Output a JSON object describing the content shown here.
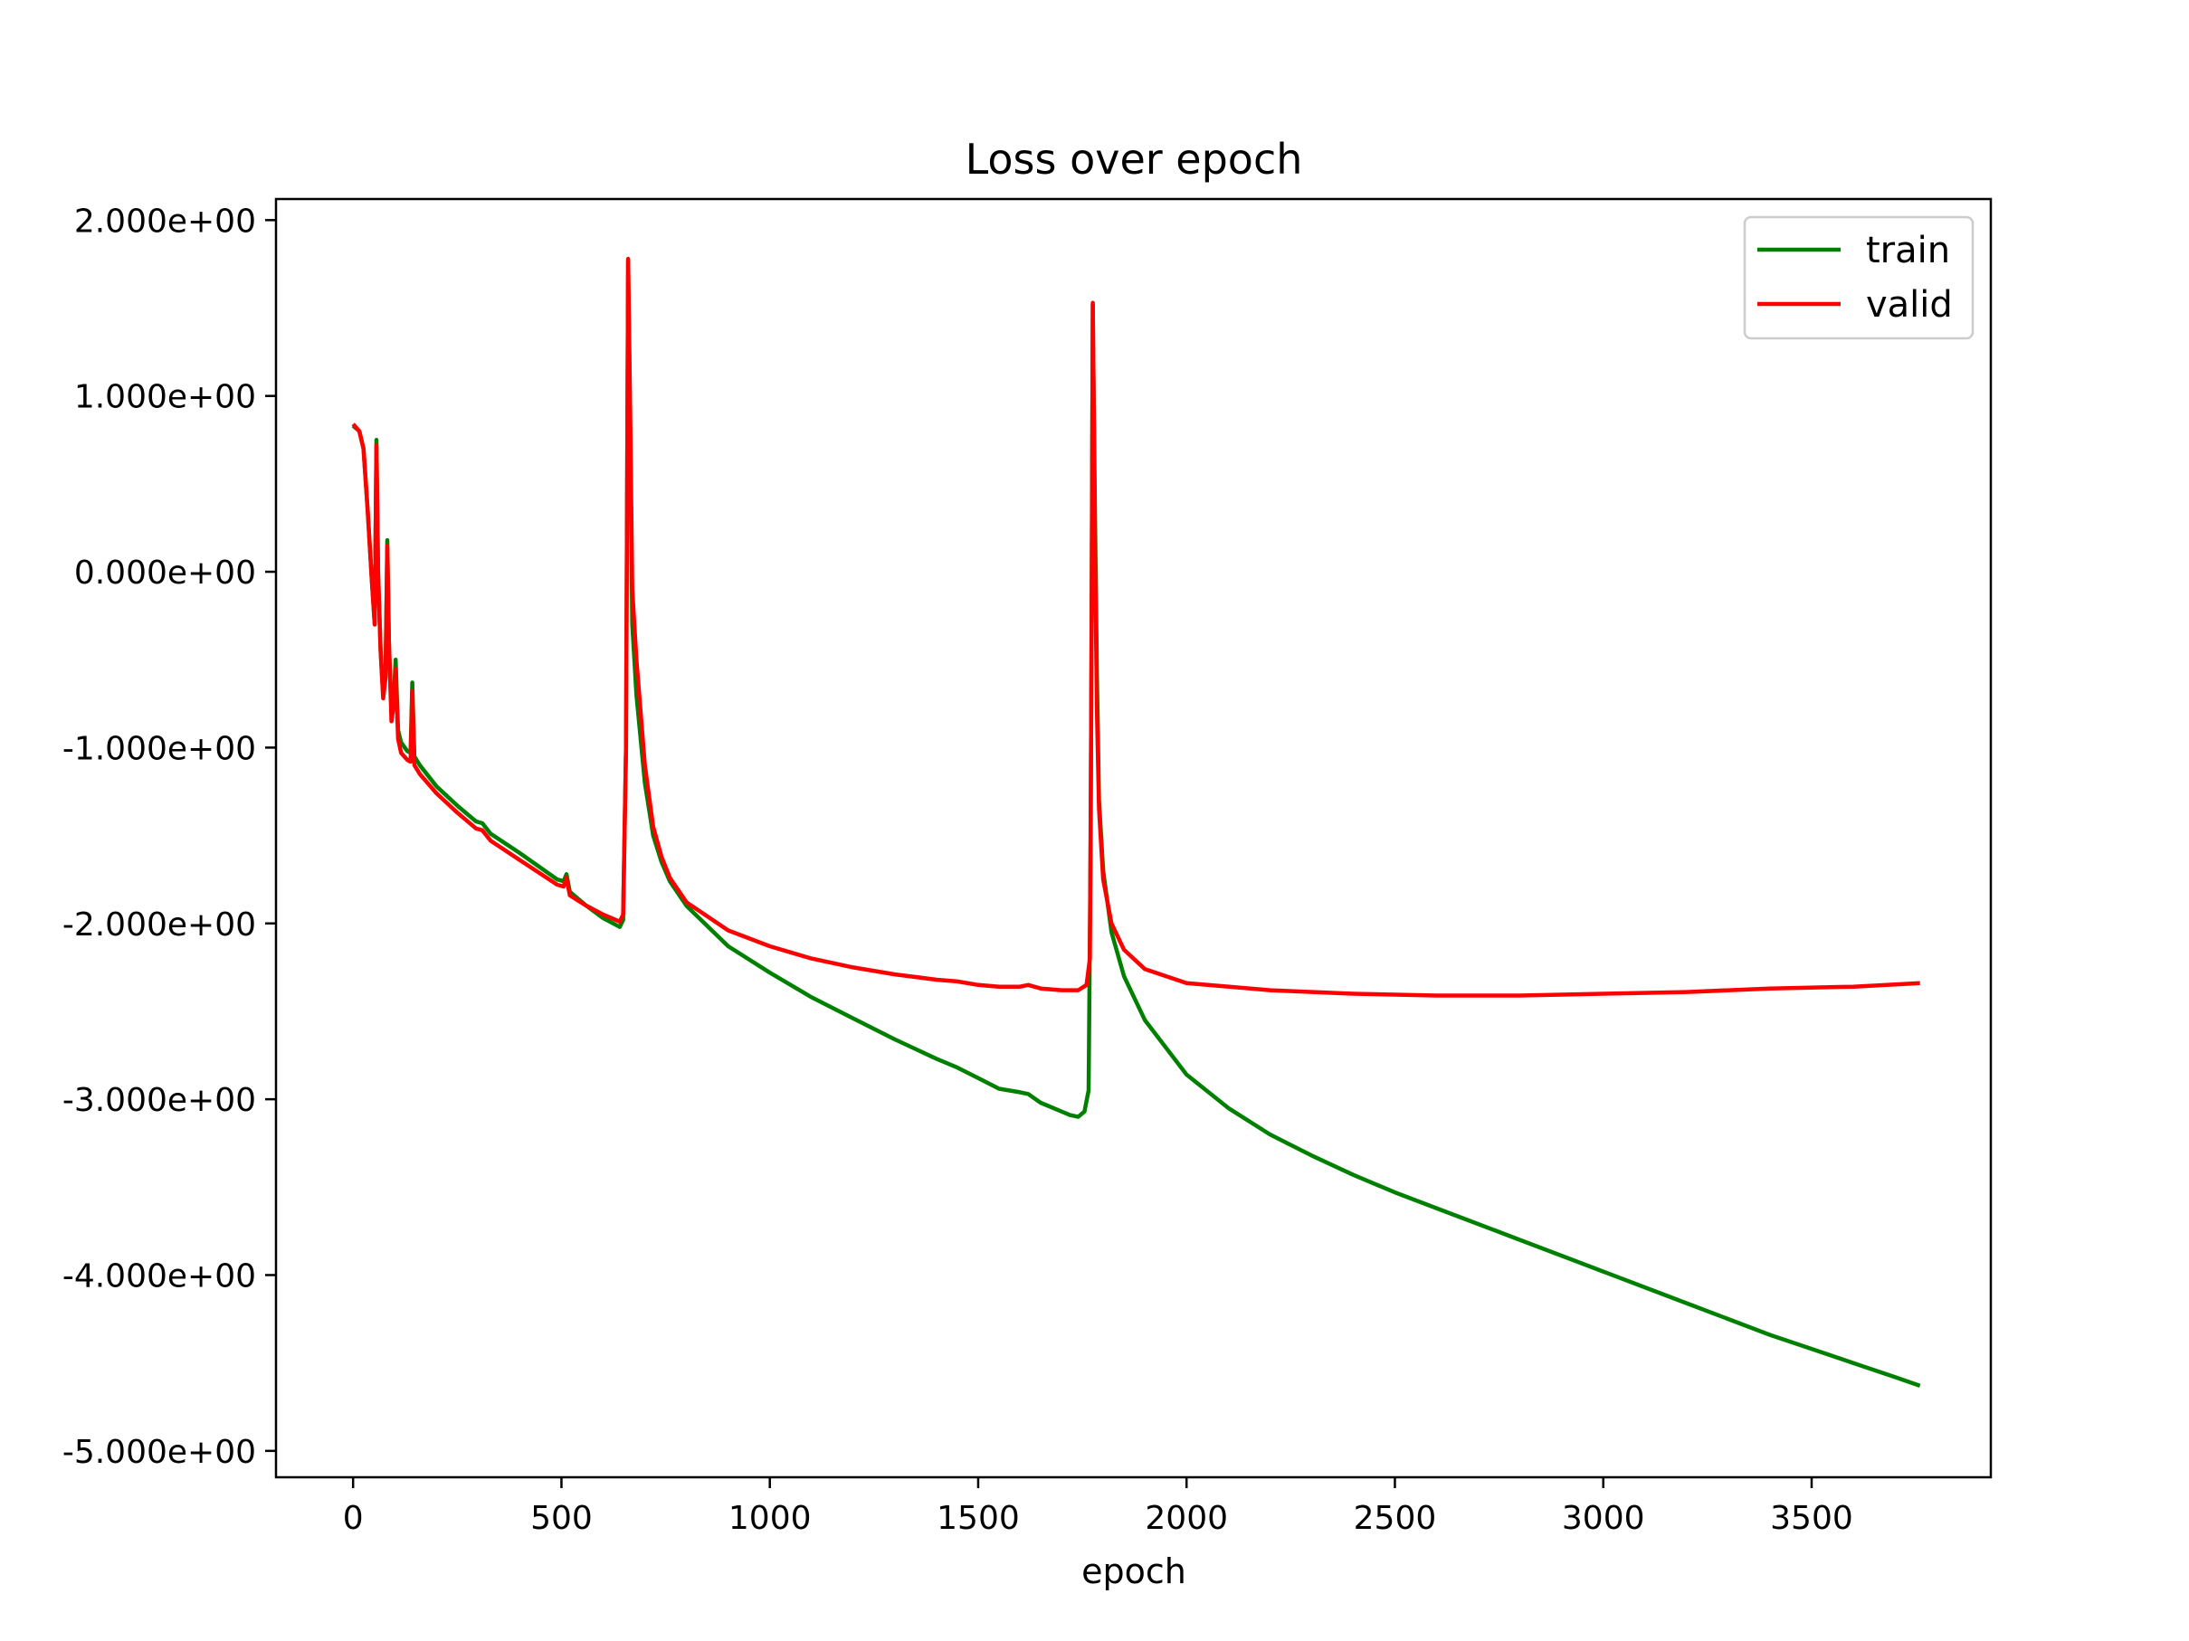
{
  "chart_data": {
    "type": "line",
    "title": "Loss over epoch",
    "xlabel": "epoch",
    "ylabel": "",
    "xlim": [
      -185,
      3930
    ],
    "ylim": [
      -5.15,
      2.12
    ],
    "xticks": [
      0,
      500,
      1000,
      1500,
      2000,
      2500,
      3000,
      3500
    ],
    "xtick_labels": [
      "0",
      "500",
      "1000",
      "1500",
      "2000",
      "2500",
      "3000",
      "3500"
    ],
    "yticks": [
      2,
      1,
      0,
      -1,
      -2,
      -3,
      -4,
      -5
    ],
    "ytick_labels": [
      "2.000e+00",
      "1.000e+00",
      "0.000e+00",
      "-1.000e+00",
      "-2.000e+00",
      "-3.000e+00",
      "-4.000e+00",
      "-5.000e+00"
    ],
    "grid": false,
    "legend_position": "top-right",
    "series": [
      {
        "name": "train",
        "color": "#008000",
        "points": [
          [
            0,
            0.83
          ],
          [
            15,
            0.8
          ],
          [
            25,
            0.7
          ],
          [
            35,
            0.35
          ],
          [
            45,
            -0.05
          ],
          [
            52,
            -0.3
          ],
          [
            56,
            0.75
          ],
          [
            60,
            0.0
          ],
          [
            66,
            -0.45
          ],
          [
            72,
            -0.7
          ],
          [
            78,
            -0.55
          ],
          [
            82,
            0.18
          ],
          [
            86,
            -0.4
          ],
          [
            92,
            -0.8
          ],
          [
            98,
            -0.7
          ],
          [
            102,
            -0.5
          ],
          [
            108,
            -0.9
          ],
          [
            115,
            -0.97
          ],
          [
            130,
            -1.02
          ],
          [
            138,
            -1.03
          ],
          [
            142,
            -0.63
          ],
          [
            147,
            -1.05
          ],
          [
            160,
            -1.1
          ],
          [
            200,
            -1.22
          ],
          [
            250,
            -1.33
          ],
          [
            295,
            -1.42
          ],
          [
            310,
            -1.43
          ],
          [
            330,
            -1.49
          ],
          [
            400,
            -1.6
          ],
          [
            490,
            -1.75
          ],
          [
            505,
            -1.76
          ],
          [
            512,
            -1.72
          ],
          [
            520,
            -1.82
          ],
          [
            560,
            -1.9
          ],
          [
            600,
            -1.97
          ],
          [
            640,
            -2.02
          ],
          [
            648,
            -1.98
          ],
          [
            655,
            -1.0
          ],
          [
            660,
            1.77
          ],
          [
            665,
            0.8
          ],
          [
            670,
            -0.3
          ],
          [
            680,
            -0.7
          ],
          [
            700,
            -1.2
          ],
          [
            720,
            -1.5
          ],
          [
            740,
            -1.65
          ],
          [
            760,
            -1.76
          ],
          [
            800,
            -1.9
          ],
          [
            900,
            -2.13
          ],
          [
            1000,
            -2.28
          ],
          [
            1100,
            -2.42
          ],
          [
            1200,
            -2.54
          ],
          [
            1300,
            -2.66
          ],
          [
            1400,
            -2.77
          ],
          [
            1450,
            -2.82
          ],
          [
            1500,
            -2.88
          ],
          [
            1550,
            -2.94
          ],
          [
            1600,
            -2.96
          ],
          [
            1620,
            -2.97
          ],
          [
            1650,
            -3.02
          ],
          [
            1700,
            -3.07
          ],
          [
            1720,
            -3.09
          ],
          [
            1740,
            -3.1
          ],
          [
            1755,
            -3.07
          ],
          [
            1765,
            -2.95
          ],
          [
            1770,
            -1.5
          ],
          [
            1775,
            1.52
          ],
          [
            1780,
            0.4
          ],
          [
            1785,
            -0.6
          ],
          [
            1790,
            -1.3
          ],
          [
            1800,
            -1.7
          ],
          [
            1820,
            -2.05
          ],
          [
            1850,
            -2.3
          ],
          [
            1900,
            -2.55
          ],
          [
            2000,
            -2.86
          ],
          [
            2100,
            -3.05
          ],
          [
            2200,
            -3.2
          ],
          [
            2300,
            -3.32
          ],
          [
            2400,
            -3.43
          ],
          [
            2500,
            -3.53
          ],
          [
            2600,
            -3.62
          ],
          [
            2700,
            -3.71
          ],
          [
            2800,
            -3.8
          ],
          [
            2900,
            -3.89
          ],
          [
            3000,
            -3.98
          ],
          [
            3100,
            -4.07
          ],
          [
            3200,
            -4.16
          ],
          [
            3300,
            -4.25
          ],
          [
            3400,
            -4.34
          ],
          [
            3500,
            -4.42
          ],
          [
            3600,
            -4.5
          ],
          [
            3700,
            -4.58
          ],
          [
            3760,
            -4.63
          ]
        ]
      },
      {
        "name": "valid",
        "color": "#ff0000",
        "points": [
          [
            0,
            0.84
          ],
          [
            15,
            0.8
          ],
          [
            25,
            0.7
          ],
          [
            35,
            0.35
          ],
          [
            45,
            -0.05
          ],
          [
            52,
            -0.3
          ],
          [
            56,
            0.72
          ],
          [
            60,
            0.0
          ],
          [
            66,
            -0.45
          ],
          [
            72,
            -0.72
          ],
          [
            78,
            -0.6
          ],
          [
            82,
            0.15
          ],
          [
            86,
            -0.4
          ],
          [
            92,
            -0.85
          ],
          [
            98,
            -0.75
          ],
          [
            102,
            -0.55
          ],
          [
            108,
            -0.95
          ],
          [
            115,
            -1.03
          ],
          [
            130,
            -1.07
          ],
          [
            138,
            -1.08
          ],
          [
            142,
            -0.68
          ],
          [
            147,
            -1.1
          ],
          [
            160,
            -1.15
          ],
          [
            200,
            -1.26
          ],
          [
            250,
            -1.37
          ],
          [
            295,
            -1.46
          ],
          [
            310,
            -1.47
          ],
          [
            330,
            -1.53
          ],
          [
            400,
            -1.64
          ],
          [
            490,
            -1.78
          ],
          [
            505,
            -1.79
          ],
          [
            512,
            -1.74
          ],
          [
            520,
            -1.84
          ],
          [
            560,
            -1.9
          ],
          [
            600,
            -1.95
          ],
          [
            640,
            -1.99
          ],
          [
            648,
            -1.95
          ],
          [
            655,
            -1.0
          ],
          [
            660,
            1.78
          ],
          [
            665,
            0.9
          ],
          [
            670,
            -0.1
          ],
          [
            680,
            -0.5
          ],
          [
            700,
            -1.1
          ],
          [
            720,
            -1.45
          ],
          [
            740,
            -1.62
          ],
          [
            760,
            -1.74
          ],
          [
            800,
            -1.88
          ],
          [
            900,
            -2.04
          ],
          [
            1000,
            -2.13
          ],
          [
            1100,
            -2.2
          ],
          [
            1200,
            -2.25
          ],
          [
            1300,
            -2.29
          ],
          [
            1400,
            -2.32
          ],
          [
            1450,
            -2.33
          ],
          [
            1500,
            -2.35
          ],
          [
            1550,
            -2.36
          ],
          [
            1600,
            -2.36
          ],
          [
            1620,
            -2.35
          ],
          [
            1650,
            -2.37
          ],
          [
            1700,
            -2.38
          ],
          [
            1740,
            -2.38
          ],
          [
            1760,
            -2.35
          ],
          [
            1768,
            -2.2
          ],
          [
            1772,
            -0.5
          ],
          [
            1775,
            1.53
          ],
          [
            1780,
            0.2
          ],
          [
            1785,
            -0.8
          ],
          [
            1790,
            -1.35
          ],
          [
            1800,
            -1.75
          ],
          [
            1820,
            -2.0
          ],
          [
            1850,
            -2.15
          ],
          [
            1900,
            -2.26
          ],
          [
            2000,
            -2.34
          ],
          [
            2200,
            -2.38
          ],
          [
            2400,
            -2.4
          ],
          [
            2600,
            -2.41
          ],
          [
            2800,
            -2.41
          ],
          [
            3000,
            -2.4
          ],
          [
            3200,
            -2.39
          ],
          [
            3400,
            -2.37
          ],
          [
            3600,
            -2.36
          ],
          [
            3760,
            -2.34
          ]
        ]
      }
    ]
  }
}
